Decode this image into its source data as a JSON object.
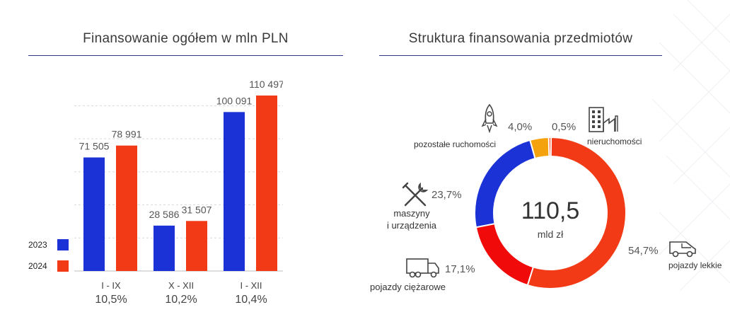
{
  "left": {
    "title": "Finansowanie ogółem w mln PLN",
    "legend": [
      {
        "label": "2023",
        "color": "#1b33d6"
      },
      {
        "label": "2024",
        "color": "#f23b16"
      }
    ],
    "growth": [
      "10,5%",
      "10,2%",
      "10,4%"
    ]
  },
  "right": {
    "title": "Struktura finansowania przedmiotów",
    "center_value": "110,5",
    "center_unit": "mld zł",
    "segments": [
      {
        "label": "pojazdy lekkie",
        "pct": "54,7%",
        "icon": "van-icon"
      },
      {
        "label": "pojazdy ciężarowe",
        "pct": "17,1%",
        "icon": "truck-icon"
      },
      {
        "label": "maszyny\ni urządzenia",
        "pct": "23,7%",
        "icon": "tools-icon"
      },
      {
        "label": "pozostałe ruchomości",
        "pct": "4,0%",
        "icon": "rocket-icon"
      },
      {
        "label": "nieruchomości",
        "pct": "0,5%",
        "icon": "building-icon"
      }
    ]
  },
  "chart_data": [
    {
      "type": "bar",
      "title": "Finansowanie ogółem w mln PLN",
      "categories": [
        "I - IX",
        "X - XII",
        "I - XII"
      ],
      "series": [
        {
          "name": "2023",
          "values": [
            71505,
            28586,
            100091
          ],
          "labels": [
            "71 505",
            "28 586",
            "100 091"
          ],
          "color": "#1b33d6"
        },
        {
          "name": "2024",
          "values": [
            78991,
            31507,
            110497
          ],
          "labels": [
            "78 991",
            "31 507",
            "110 497"
          ],
          "color": "#f23b16"
        }
      ],
      "ylim": [
        0,
        110497
      ],
      "grid": true,
      "legend": "bottom-left"
    },
    {
      "type": "pie",
      "title": "Struktura finansowania przedmiotów",
      "labels": [
        "pojazdy lekkie",
        "pojazdy ciężarowe",
        "maszyny i urządzenia",
        "pozostałe ruchomości",
        "nieruchomości"
      ],
      "values": [
        54.7,
        17.1,
        23.7,
        4.0,
        0.5
      ],
      "colors": [
        "#f23b16",
        "#f00a0a",
        "#1b33d6",
        "#f5a20f",
        "#f23b16"
      ]
    }
  ]
}
